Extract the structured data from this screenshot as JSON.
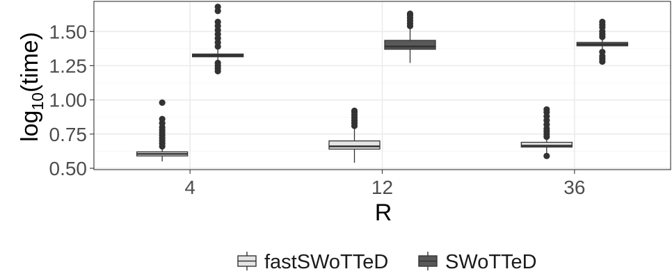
{
  "chart_data": {
    "type": "boxplot",
    "title": "",
    "xlabel": "R",
    "ylabel_main": "log",
    "ylabel_sub": "10",
    "ylabel_rest": "(time)",
    "categories": [
      "4",
      "12",
      "36"
    ],
    "yticks": [
      "0.50",
      "0.75",
      "1.00",
      "1.25",
      "1.50"
    ],
    "ylim": [
      0.49,
      1.72
    ],
    "grid": true,
    "legend_position": "bottom",
    "series": [
      {
        "name": "fastSWoTTeD",
        "fill": "#e5e5e5",
        "boxes": [
          {
            "category": "4",
            "min": 0.55,
            "q1": 0.59,
            "median": 0.605,
            "q3": 0.62,
            "max": 0.655,
            "outliers": [
              0.66,
              0.68,
              0.7,
              0.72,
              0.74,
              0.76,
              0.78,
              0.8,
              0.83,
              0.86,
              0.98
            ]
          },
          {
            "category": "12",
            "min": 0.54,
            "q1": 0.64,
            "median": 0.66,
            "q3": 0.7,
            "max": 0.8,
            "outliers": [
              0.81,
              0.83,
              0.85,
              0.87,
              0.89,
              0.91,
              0.92
            ]
          },
          {
            "category": "36",
            "min": 0.6,
            "q1": 0.655,
            "median": 0.665,
            "q3": 0.69,
            "max": 0.72,
            "outliers": [
              0.59,
              0.73,
              0.75,
              0.77,
              0.79,
              0.82,
              0.85,
              0.88,
              0.91,
              0.93
            ]
          }
        ]
      },
      {
        "name": "SWoTTeD",
        "fill": "#595959",
        "boxes": [
          {
            "category": "4",
            "min": 1.29,
            "q1": 1.315,
            "median": 1.325,
            "q3": 1.335,
            "max": 1.37,
            "outliers": [
              1.21,
              1.23,
              1.25,
              1.27,
              1.39,
              1.42,
              1.45,
              1.48,
              1.51,
              1.54,
              1.57,
              1.65,
              1.68
            ]
          },
          {
            "category": "12",
            "min": 1.27,
            "q1": 1.37,
            "median": 1.39,
            "q3": 1.435,
            "max": 1.53,
            "outliers": [
              1.54,
              1.56,
              1.58,
              1.6,
              1.62,
              1.63
            ]
          },
          {
            "category": "36",
            "min": 1.33,
            "q1": 1.395,
            "median": 1.405,
            "q3": 1.42,
            "max": 1.44,
            "outliers": [
              1.28,
              1.3,
              1.32,
              1.35,
              1.46,
              1.48,
              1.5,
              1.53,
              1.55,
              1.57
            ]
          }
        ]
      }
    ]
  }
}
